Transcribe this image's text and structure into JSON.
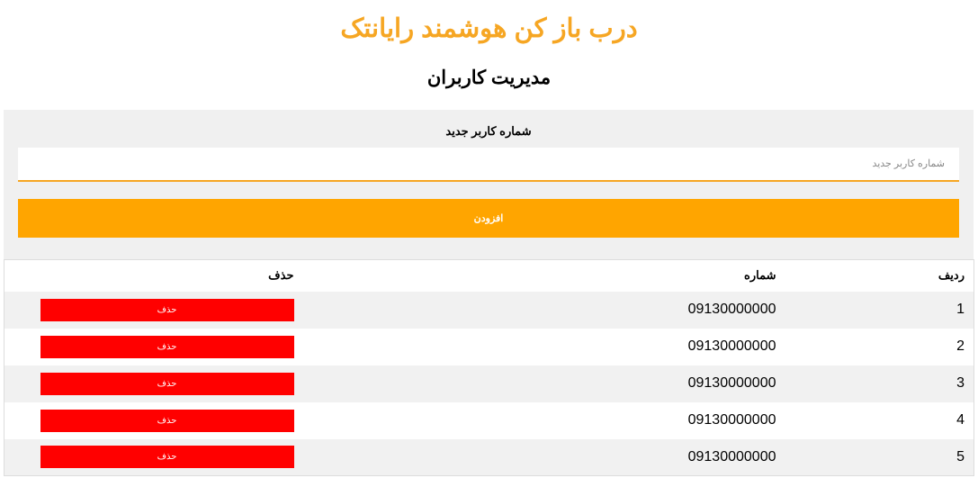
{
  "header": {
    "title": "درب باز کن هوشمند رایانتک",
    "subtitle": "مدیریت کاربران"
  },
  "form": {
    "label": "شماره کاربر جدید",
    "placeholder": "شماره کاربر جدید",
    "value": "",
    "add_label": "افزودن"
  },
  "table": {
    "columns": [
      "ردیف",
      "شماره",
      "حذف"
    ],
    "rows": [
      {
        "index": "1",
        "number": "09130000000",
        "delete_label": "حذف"
      },
      {
        "index": "2",
        "number": "09130000000",
        "delete_label": "حذف"
      },
      {
        "index": "3",
        "number": "09130000000",
        "delete_label": "حذف"
      },
      {
        "index": "4",
        "number": "09130000000",
        "delete_label": "حذف"
      },
      {
        "index": "5",
        "number": "09130000000",
        "delete_label": "حذف"
      }
    ]
  },
  "colors": {
    "accent": "#ffa500",
    "title": "#f6a623",
    "delete": "#ff0000"
  }
}
